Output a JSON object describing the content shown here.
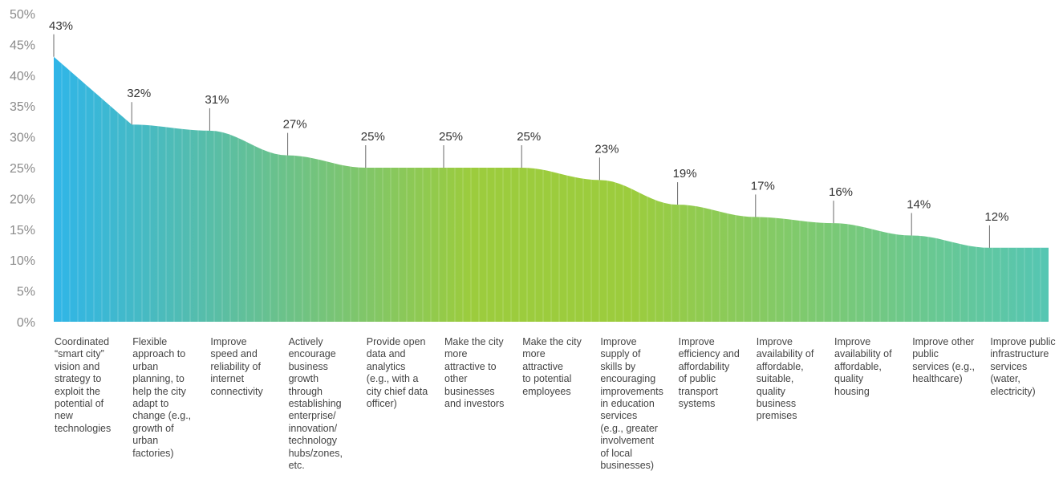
{
  "chart_data": {
    "type": "area",
    "yticks": [
      "0%",
      "5%",
      "10%",
      "15%",
      "20%",
      "25%",
      "30%",
      "35%",
      "40%",
      "45%",
      "50%"
    ],
    "ylim": [
      0,
      50
    ],
    "grid": false,
    "categories": [
      "Coordinated\n“smart city”\nvision and\nstrategy to\nexploit the\npotential of\nnew\ntechnologies",
      "Flexible\napproach to\nurban\nplanning, to\nhelp the city\nadapt to\nchange (e.g.,\ngrowth of\nurban\nfactories)",
      "Improve\nspeed and\nreliability of\ninternet\nconnectivity",
      "Actively\nencourage\nbusiness\ngrowth\nthrough\nestablishing\nenterprise/\ninnovation/\ntechnology\nhubs/zones,\netc.",
      "Provide open\ndata and\nanalytics\n(e.g., with a\ncity chief data\nofficer)",
      "Make the city\nmore\nattractive to\nother\nbusinesses\nand investors",
      "Make the city\nmore\nattractive\nto potential\nemployees",
      "Improve\nsupply of\nskills by\nencouraging\nimprovements\nin education\nservices\n(e.g., greater\ninvolvement\nof local\nbusinesses)",
      "Improve\nefficiency and\naffordability\nof public\ntransport\nsystems",
      "Improve\navailability of\naffordable,\nsuitable,\nquality\nbusiness\npremises",
      "Improve\navailability of\naffordable,\nquality\nhousing",
      "Improve other\npublic\nservices (e.g.,\nhealthcare)",
      "Improve public\ninfrastructure\nservices\n(water,\nelectricity)"
    ],
    "values": [
      43,
      32,
      31,
      27,
      25,
      25,
      25,
      23,
      19,
      17,
      16,
      14,
      12
    ],
    "value_labels": [
      "43%",
      "32%",
      "31%",
      "27%",
      "25%",
      "25%",
      "25%",
      "23%",
      "19%",
      "17%",
      "16%",
      "14%",
      "12%"
    ],
    "colors": {
      "start": "#2fb5e8",
      "middle": "#9ccc3d",
      "end": "#55c6b3",
      "label": "#333333",
      "tick": "#8a8a8a"
    }
  }
}
